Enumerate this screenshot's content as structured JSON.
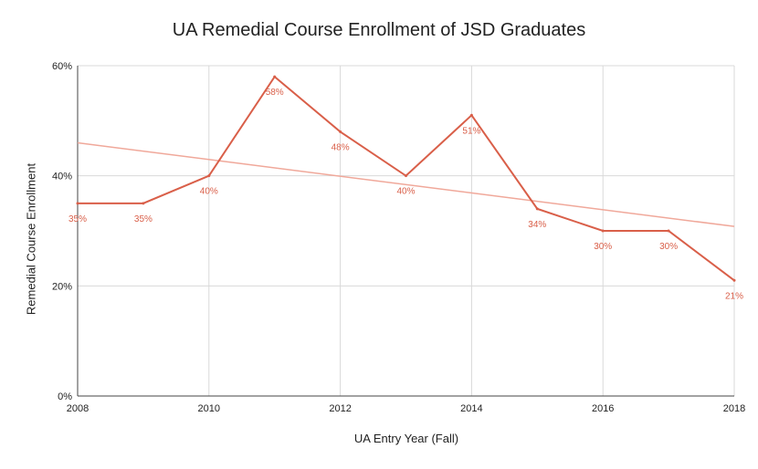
{
  "chart_data": {
    "type": "line",
    "title": "UA Remedial Course Enrollment of JSD Graduates",
    "xlabel": "UA Entry Year (Fall)",
    "ylabel": "Remedial Course Enrollment",
    "x": [
      2008,
      2009,
      2010,
      2011,
      2012,
      2013,
      2014,
      2015,
      2016,
      2017,
      2018
    ],
    "series": [
      {
        "values": [
          35,
          35,
          40,
          58,
          48,
          40,
          51,
          34,
          30,
          30,
          21
        ],
        "data_labels": [
          "35%",
          "35%",
          "40%",
          "58%",
          "48%",
          "40%",
          "51%",
          "34%",
          "30%",
          "30%",
          "21%"
        ],
        "color": "#d95f49"
      }
    ],
    "trendline": {
      "type": "linear",
      "y_at_2008": 46,
      "y_at_2018": 30.8,
      "color": "#f0a89a"
    },
    "xlim": [
      2008,
      2018
    ],
    "ylim": [
      0,
      60
    ],
    "x_ticks": [
      "2008",
      "2010",
      "2012",
      "2014",
      "2016",
      "2018"
    ],
    "y_ticks": [
      "0%",
      "20%",
      "40%",
      "60%"
    ],
    "grid": true,
    "legend": "none"
  }
}
